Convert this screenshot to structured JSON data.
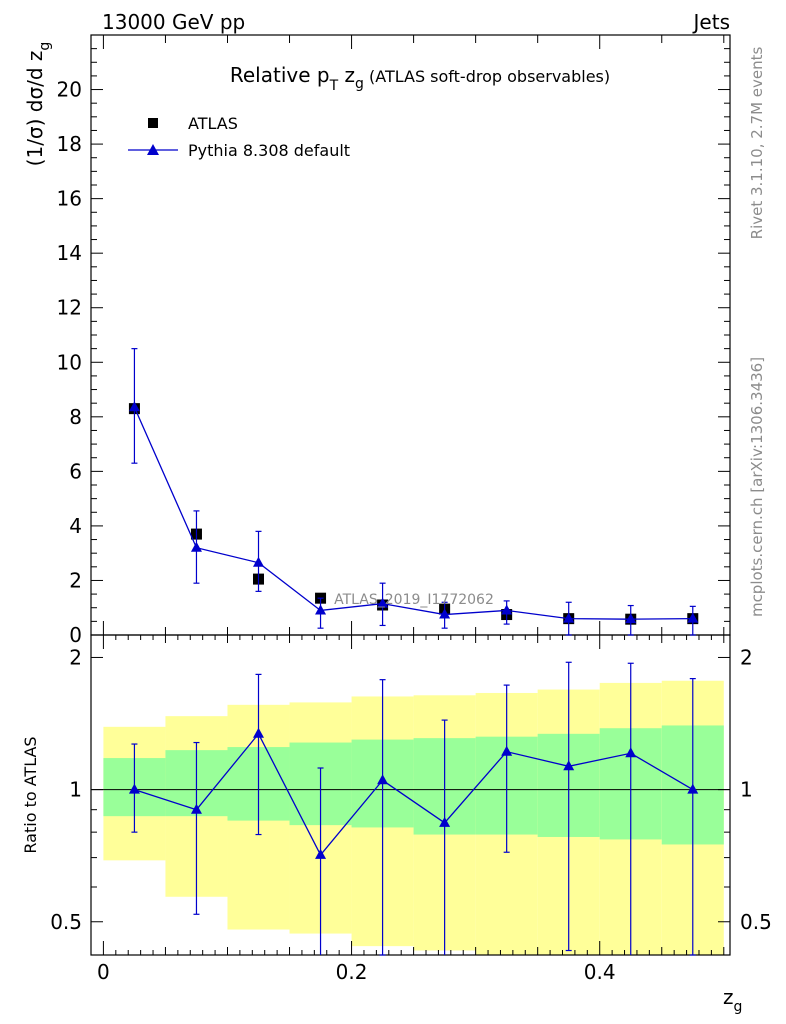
{
  "header": {
    "left": "13000 GeV pp",
    "right": "Jets",
    "rivet": "Rivet 3.1.10,  2.7M events",
    "mcplots": "mcplots.cern.ch [arXiv:1306.3436]"
  },
  "colors": {
    "data": "#000000",
    "mc": "#0000cc",
    "band_inner": "#99ff99",
    "band_outer": "#ffff99"
  },
  "chart_data": [
    {
      "type": "scatter",
      "title_parts": {
        "pre": "Relative p",
        "sub": "T",
        "mid": " z",
        "sub2": "g",
        "post": " (ATLAS soft-drop observables)"
      },
      "ylabel_parts": {
        "pre": "(1/σ) dσ/d z",
        "sub": "g"
      },
      "watermark": "ATLAS_2019_I1772062",
      "ylim": [
        0,
        22
      ],
      "yticks": [
        "0",
        "2",
        "4",
        "6",
        "8",
        "10",
        "12",
        "14",
        "16",
        "18",
        "20"
      ],
      "x": [
        0.025,
        0.075,
        0.125,
        0.175,
        0.225,
        0.275,
        0.325,
        0.375,
        0.425,
        0.475
      ],
      "series": [
        {
          "name": "ATLAS",
          "values": [
            8.3,
            3.7,
            2.05,
            1.35,
            1.1,
            0.95,
            0.75,
            0.6,
            0.58,
            0.6
          ],
          "err_lo": [
            0.1,
            0.1,
            0.1,
            0.05,
            0.05,
            0.05,
            0.05,
            0.05,
            0.05,
            0.05
          ],
          "err_hi": [
            0.1,
            0.1,
            0.1,
            0.05,
            0.05,
            0.05,
            0.05,
            0.05,
            0.05,
            0.05
          ]
        },
        {
          "name": "Pythia 8.308 default",
          "values": [
            8.35,
            3.2,
            2.65,
            0.9,
            1.15,
            0.75,
            0.9,
            0.6,
            0.58,
            0.6
          ],
          "err_lo": [
            2.05,
            1.3,
            1.05,
            0.65,
            0.8,
            0.5,
            0.5,
            0.6,
            0.58,
            0.6
          ],
          "err_hi": [
            2.15,
            1.35,
            1.15,
            0.45,
            0.75,
            0.45,
            0.35,
            0.6,
            0.5,
            0.45
          ]
        }
      ],
      "legend": "top-left"
    },
    {
      "type": "scatter",
      "ylabel": "Ratio to ATLAS",
      "xlabel": "z",
      "xlabel_sub": "g",
      "xlim": [
        -0.01,
        0.505
      ],
      "ylog": true,
      "ylim": [
        0.42,
        2.25
      ],
      "yticks": [
        "0.5",
        "1",
        "2"
      ],
      "xticks": [
        "0",
        "0.2",
        "0.4"
      ],
      "bin_edges": [
        0.0,
        0.05,
        0.1,
        0.15,
        0.2,
        0.25,
        0.3,
        0.35,
        0.4,
        0.45,
        0.5
      ],
      "band_inner_lo": [
        0.87,
        0.87,
        0.85,
        0.83,
        0.82,
        0.79,
        0.79,
        0.78,
        0.77,
        0.75
      ],
      "band_inner_hi": [
        1.18,
        1.23,
        1.25,
        1.28,
        1.3,
        1.31,
        1.32,
        1.34,
        1.38,
        1.4
      ],
      "band_outer_lo": [
        0.69,
        0.57,
        0.48,
        0.47,
        0.44,
        0.43,
        0.42,
        0.41,
        0.41,
        0.41
      ],
      "band_outer_hi": [
        1.39,
        1.47,
        1.56,
        1.58,
        1.63,
        1.64,
        1.66,
        1.69,
        1.75,
        1.77
      ],
      "series": [
        {
          "name": "Pythia 8.308 default",
          "values": [
            1.0,
            0.9,
            1.34,
            0.71,
            1.05,
            0.84,
            1.22,
            1.13,
            1.21,
            1.0
          ],
          "err_lo": [
            0.2,
            0.38,
            0.55,
            0.32,
            0.63,
            0.42,
            0.5,
            0.7,
            0.84,
            0.58
          ],
          "err_hi": [
            0.27,
            0.38,
            0.49,
            0.41,
            0.73,
            0.6,
            0.51,
            0.82,
            0.73,
            0.79
          ]
        }
      ]
    }
  ]
}
